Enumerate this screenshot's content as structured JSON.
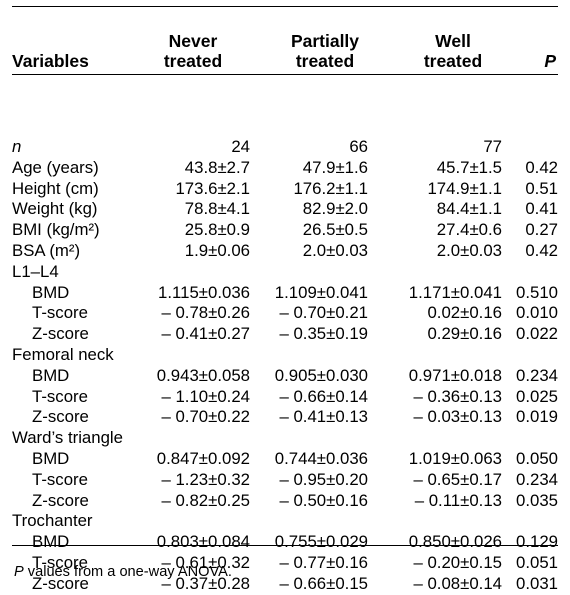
{
  "header": {
    "variables": "Variables",
    "groups": [
      {
        "line1": "Never",
        "line2": "treated"
      },
      {
        "line1": "Partially",
        "line2": "treated"
      },
      {
        "line1": "Well",
        "line2": "treated"
      }
    ],
    "p": "P"
  },
  "rows": [
    {
      "label": "n",
      "italic": true,
      "sub": false,
      "group": false,
      "values": [
        "24",
        "66",
        "77"
      ],
      "p": ""
    },
    {
      "label": "Age (years)",
      "italic": false,
      "sub": false,
      "group": false,
      "values": [
        "43.8±2.7",
        "47.9±1.6",
        "45.7±1.5"
      ],
      "p": "0.42"
    },
    {
      "label": "Height (cm)",
      "italic": false,
      "sub": false,
      "group": false,
      "values": [
        "173.6±2.1",
        "176.2±1.1",
        "174.9±1.1"
      ],
      "p": "0.51"
    },
    {
      "label": "Weight (kg)",
      "italic": false,
      "sub": false,
      "group": false,
      "values": [
        "78.8±4.1",
        "82.9±2.0",
        "84.4±1.1"
      ],
      "p": "0.41"
    },
    {
      "label": "BMI (kg/m²)",
      "italic": false,
      "sub": false,
      "group": false,
      "values": [
        "25.8±0.9",
        "26.5±0.5",
        "27.4±0.6"
      ],
      "p": "0.27"
    },
    {
      "label": "BSA (m²)",
      "italic": false,
      "sub": false,
      "group": false,
      "values": [
        "1.9±0.06",
        "2.0±0.03",
        "2.0±0.03"
      ],
      "p": "0.42"
    },
    {
      "label": "L1–L4",
      "italic": false,
      "sub": false,
      "group": true,
      "values": [
        "",
        "",
        ""
      ],
      "p": ""
    },
    {
      "label": "BMD",
      "italic": false,
      "sub": true,
      "group": false,
      "values": [
        "1.115±0.036",
        "1.109±0.041",
        "1.171±0.041"
      ],
      "p": "0.510"
    },
    {
      "label": "T-score",
      "italic": false,
      "sub": true,
      "group": false,
      "values": [
        "– 0.78±0.26",
        "– 0.70±0.21",
        "0.02±0.16"
      ],
      "p": "0.010"
    },
    {
      "label": "Z-score",
      "italic": false,
      "sub": true,
      "group": false,
      "values": [
        "– 0.41±0.27",
        "– 0.35±0.19",
        "0.29±0.16"
      ],
      "p": "0.022"
    },
    {
      "label": "Femoral neck",
      "italic": false,
      "sub": false,
      "group": true,
      "values": [
        "",
        "",
        ""
      ],
      "p": ""
    },
    {
      "label": "BMD",
      "italic": false,
      "sub": true,
      "group": false,
      "values": [
        "0.943±0.058",
        "0.905±0.030",
        "0.971±0.018"
      ],
      "p": "0.234"
    },
    {
      "label": "T-score",
      "italic": false,
      "sub": true,
      "group": false,
      "values": [
        "– 1.10±0.24",
        "– 0.66±0.14",
        "– 0.36±0.13"
      ],
      "p": "0.025"
    },
    {
      "label": "Z-score",
      "italic": false,
      "sub": true,
      "group": false,
      "values": [
        "– 0.70±0.22",
        "– 0.41±0.13",
        "– 0.03±0.13"
      ],
      "p": "0.019"
    },
    {
      "label": "Ward’s triangle",
      "italic": false,
      "sub": false,
      "group": true,
      "values": [
        "",
        "",
        ""
      ],
      "p": ""
    },
    {
      "label": "BMD",
      "italic": false,
      "sub": true,
      "group": false,
      "values": [
        "0.847±0.092",
        "0.744±0.036",
        "1.019±0.063"
      ],
      "p": "0.050"
    },
    {
      "label": "T-score",
      "italic": false,
      "sub": true,
      "group": false,
      "values": [
        "– 1.23±0.32",
        "– 0.95±0.20",
        "– 0.65±0.17"
      ],
      "p": "0.234"
    },
    {
      "label": "Z-score",
      "italic": false,
      "sub": true,
      "group": false,
      "values": [
        "– 0.82±0.25",
        "– 0.50±0.16",
        "– 0.11±0.13"
      ],
      "p": "0.035"
    },
    {
      "label": "Trochanter",
      "italic": false,
      "sub": false,
      "group": true,
      "values": [
        "",
        "",
        ""
      ],
      "p": ""
    },
    {
      "label": "BMD",
      "italic": false,
      "sub": true,
      "group": false,
      "values": [
        "0.803±0.084",
        "0.755±0.029",
        "0.850±0.026"
      ],
      "p": "0.129"
    },
    {
      "label": "T-score",
      "italic": false,
      "sub": true,
      "group": false,
      "values": [
        "– 0.61±0.32",
        "– 0.77±0.16",
        "– 0.20±0.15"
      ],
      "p": "0.051"
    },
    {
      "label": "Z-score",
      "italic": false,
      "sub": true,
      "group": false,
      "values": [
        "– 0.37±0.28",
        "– 0.66±0.15",
        "– 0.08±0.14"
      ],
      "p": "0.031"
    }
  ],
  "footnote": {
    "p_symbol": "P",
    "text": " values from a one-way ANOVA."
  }
}
